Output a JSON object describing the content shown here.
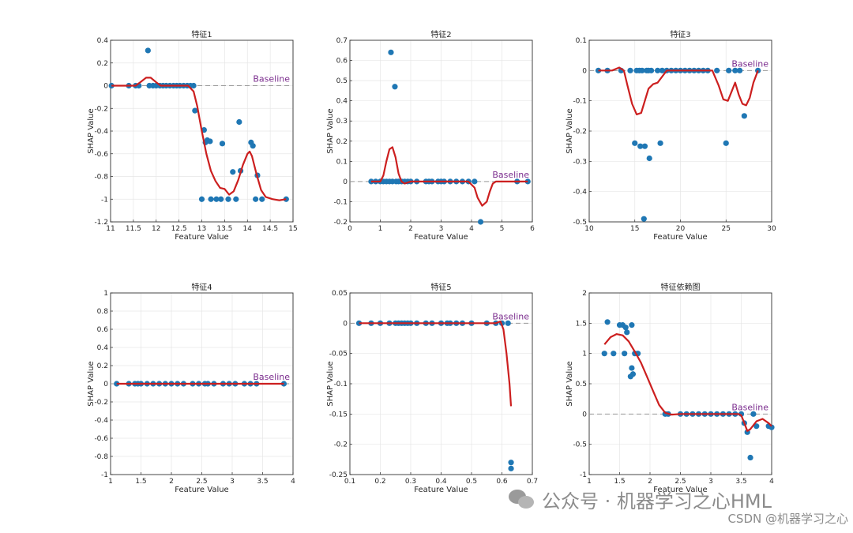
{
  "watermark": {
    "text": "公众号 · 机器学习之心HML",
    "icon": "wechat-icon",
    "csdn": "CSDN @机器学习之心"
  },
  "colors": {
    "points": "#1f77b4",
    "curve": "#cc1f1f",
    "baseline_text": "#7b2d8e",
    "baseline_line": "#999999"
  },
  "chart_data": [
    {
      "type": "scatter",
      "title": "特征1",
      "xlabel": "Feature Value",
      "ylabel": "SHAP Value",
      "xlim": [
        11,
        15
      ],
      "ylim": [
        -1.2,
        0.4
      ],
      "xticks": [
        "11",
        "11.5",
        "12",
        "12.5",
        "13",
        "13.5",
        "14",
        "14.5",
        "15"
      ],
      "yticks": [
        "-1.2",
        "-1",
        "-0.8",
        "-0.6",
        "-0.4",
        "-0.2",
        "0",
        "0.2",
        "0.4"
      ],
      "baseline_label": "Baseline",
      "points": [
        [
          11.02,
          0
        ],
        [
          11.4,
          0
        ],
        [
          11.55,
          0
        ],
        [
          11.62,
          0
        ],
        [
          11.82,
          0.31
        ],
        [
          11.85,
          0
        ],
        [
          11.93,
          0
        ],
        [
          12.0,
          0
        ],
        [
          12.08,
          0
        ],
        [
          12.15,
          0
        ],
        [
          12.22,
          0
        ],
        [
          12.3,
          0
        ],
        [
          12.38,
          0
        ],
        [
          12.45,
          0
        ],
        [
          12.52,
          0
        ],
        [
          12.6,
          0
        ],
        [
          12.68,
          0
        ],
        [
          12.75,
          0
        ],
        [
          12.82,
          0
        ],
        [
          12.85,
          -0.22
        ],
        [
          13.0,
          -1
        ],
        [
          13.05,
          -0.39
        ],
        [
          13.08,
          -0.5
        ],
        [
          13.12,
          -0.48
        ],
        [
          13.18,
          -0.49
        ],
        [
          13.2,
          -1
        ],
        [
          13.32,
          -1
        ],
        [
          13.42,
          -1
        ],
        [
          13.45,
          -0.51
        ],
        [
          13.58,
          -1
        ],
        [
          13.68,
          -0.76
        ],
        [
          13.75,
          -1
        ],
        [
          13.82,
          -0.32
        ],
        [
          13.85,
          -0.75
        ],
        [
          14.08,
          -0.5
        ],
        [
          14.12,
          -0.53
        ],
        [
          14.18,
          -1
        ],
        [
          14.22,
          -0.79
        ],
        [
          14.32,
          -1
        ],
        [
          14.85,
          -1
        ]
      ],
      "curve": [
        [
          11.02,
          0
        ],
        [
          11.3,
          0
        ],
        [
          11.55,
          0
        ],
        [
          11.65,
          0.03
        ],
        [
          11.78,
          0.07
        ],
        [
          11.88,
          0.07
        ],
        [
          12.0,
          0.03
        ],
        [
          12.1,
          0
        ],
        [
          12.5,
          0
        ],
        [
          12.7,
          0
        ],
        [
          12.82,
          -0.05
        ],
        [
          12.9,
          -0.18
        ],
        [
          13.0,
          -0.4
        ],
        [
          13.1,
          -0.6
        ],
        [
          13.2,
          -0.75
        ],
        [
          13.3,
          -0.84
        ],
        [
          13.4,
          -0.9
        ],
        [
          13.5,
          -0.91
        ],
        [
          13.6,
          -0.96
        ],
        [
          13.7,
          -0.93
        ],
        [
          13.8,
          -0.83
        ],
        [
          13.9,
          -0.7
        ],
        [
          14.0,
          -0.6
        ],
        [
          14.05,
          -0.58
        ],
        [
          14.1,
          -0.62
        ],
        [
          14.2,
          -0.78
        ],
        [
          14.3,
          -0.92
        ],
        [
          14.4,
          -0.98
        ],
        [
          14.55,
          -1
        ],
        [
          14.7,
          -1.01
        ],
        [
          14.85,
          -1
        ]
      ]
    },
    {
      "type": "scatter",
      "title": "特征2",
      "xlabel": "Feature Value",
      "ylabel": "SHAP Value",
      "xlim": [
        0,
        6
      ],
      "ylim": [
        -0.2,
        0.7
      ],
      "xticks": [
        "0",
        "1",
        "2",
        "3",
        "4",
        "5",
        "6"
      ],
      "yticks": [
        "-0.2",
        "-0.1",
        "0",
        "0.1",
        "0.2",
        "0.3",
        "0.4",
        "0.5",
        "0.6",
        "0.7"
      ],
      "baseline_label": "Baseline",
      "points": [
        [
          0.7,
          0
        ],
        [
          0.85,
          0
        ],
        [
          1.0,
          0
        ],
        [
          1.1,
          0
        ],
        [
          1.2,
          0
        ],
        [
          1.3,
          0
        ],
        [
          1.35,
          0.64
        ],
        [
          1.4,
          0
        ],
        [
          1.48,
          0.47
        ],
        [
          1.52,
          0
        ],
        [
          1.6,
          0
        ],
        [
          1.7,
          0
        ],
        [
          1.8,
          0
        ],
        [
          1.9,
          0
        ],
        [
          2.0,
          0
        ],
        [
          2.2,
          0
        ],
        [
          2.5,
          0
        ],
        [
          2.6,
          0
        ],
        [
          2.7,
          0
        ],
        [
          2.9,
          0
        ],
        [
          3.0,
          0
        ],
        [
          3.1,
          0
        ],
        [
          3.3,
          0
        ],
        [
          3.5,
          0
        ],
        [
          3.7,
          0
        ],
        [
          3.9,
          0
        ],
        [
          4.1,
          0
        ],
        [
          4.3,
          -0.2
        ],
        [
          5.5,
          0
        ],
        [
          5.85,
          0
        ]
      ],
      "curve": [
        [
          0.7,
          0
        ],
        [
          1.0,
          0
        ],
        [
          1.1,
          0.03
        ],
        [
          1.2,
          0.1
        ],
        [
          1.3,
          0.16
        ],
        [
          1.4,
          0.17
        ],
        [
          1.5,
          0.12
        ],
        [
          1.6,
          0.04
        ],
        [
          1.7,
          0
        ],
        [
          1.8,
          -0.01
        ],
        [
          2.0,
          0
        ],
        [
          3.0,
          0
        ],
        [
          3.9,
          0
        ],
        [
          4.1,
          -0.03
        ],
        [
          4.2,
          -0.08
        ],
        [
          4.35,
          -0.12
        ],
        [
          4.5,
          -0.1
        ],
        [
          4.6,
          -0.05
        ],
        [
          4.7,
          -0.01
        ],
        [
          4.8,
          0
        ],
        [
          5.85,
          0
        ]
      ]
    },
    {
      "type": "scatter",
      "title": "特征3",
      "xlabel": "Feature Value",
      "ylabel": "SHAP Value",
      "xlim": [
        10,
        30
      ],
      "ylim": [
        -0.5,
        0.1
      ],
      "xticks": [
        "10",
        "15",
        "20",
        "25",
        "30"
      ],
      "yticks": [
        "-0.5",
        "-0.4",
        "-0.3",
        "-0.2",
        "-0.1",
        "0",
        "0.1"
      ],
      "baseline_label": "Baseline",
      "points": [
        [
          11.0,
          0
        ],
        [
          12.0,
          0
        ],
        [
          13.5,
          0
        ],
        [
          14.5,
          0
        ],
        [
          15.0,
          -0.24
        ],
        [
          15.2,
          0
        ],
        [
          15.5,
          0
        ],
        [
          15.6,
          -0.25
        ],
        [
          15.8,
          0
        ],
        [
          16.0,
          -0.49
        ],
        [
          16.1,
          -0.25
        ],
        [
          16.3,
          0
        ],
        [
          16.5,
          0
        ],
        [
          16.6,
          -0.29
        ],
        [
          16.8,
          0
        ],
        [
          17.5,
          0
        ],
        [
          17.8,
          -0.24
        ],
        [
          18.0,
          0
        ],
        [
          18.5,
          0
        ],
        [
          19.0,
          0
        ],
        [
          19.5,
          0
        ],
        [
          20.0,
          0
        ],
        [
          20.5,
          0
        ],
        [
          21.0,
          0
        ],
        [
          21.5,
          0
        ],
        [
          22.0,
          0
        ],
        [
          22.5,
          0
        ],
        [
          23.0,
          0
        ],
        [
          24.0,
          0
        ],
        [
          25.0,
          -0.24
        ],
        [
          25.3,
          0
        ],
        [
          26.0,
          0
        ],
        [
          26.5,
          0
        ],
        [
          27.0,
          -0.15
        ],
        [
          28.5,
          0
        ]
      ],
      "curve": [
        [
          11.0,
          0
        ],
        [
          12.5,
          0
        ],
        [
          13.3,
          0.01
        ],
        [
          13.8,
          0
        ],
        [
          14.2,
          -0.05
        ],
        [
          14.7,
          -0.11
        ],
        [
          15.2,
          -0.145
        ],
        [
          15.7,
          -0.14
        ],
        [
          16.0,
          -0.11
        ],
        [
          16.5,
          -0.06
        ],
        [
          17.0,
          -0.045
        ],
        [
          17.5,
          -0.04
        ],
        [
          18.0,
          -0.02
        ],
        [
          18.5,
          0
        ],
        [
          19.0,
          0
        ],
        [
          22.5,
          0
        ],
        [
          23.5,
          0
        ],
        [
          24.2,
          -0.05
        ],
        [
          24.7,
          -0.095
        ],
        [
          25.2,
          -0.1
        ],
        [
          25.6,
          -0.07
        ],
        [
          26.0,
          -0.04
        ],
        [
          26.4,
          -0.08
        ],
        [
          26.8,
          -0.11
        ],
        [
          27.2,
          -0.115
        ],
        [
          27.6,
          -0.09
        ],
        [
          28.0,
          -0.04
        ],
        [
          28.5,
          0
        ]
      ]
    },
    {
      "type": "scatter",
      "title": "特征4",
      "xlabel": "Feature Value",
      "ylabel": "SHAP Value",
      "xlim": [
        1,
        4
      ],
      "ylim": [
        -1,
        1
      ],
      "xticks": [
        "1",
        "1.5",
        "2",
        "2.5",
        "3",
        "3.5",
        "4"
      ],
      "yticks": [
        "-1",
        "-0.8",
        "-0.6",
        "-0.4",
        "-0.2",
        "0",
        "0.2",
        "0.4",
        "0.6",
        "0.8",
        "1"
      ],
      "baseline_label": "Baseline",
      "points": [
        [
          1.1,
          0
        ],
        [
          1.3,
          0
        ],
        [
          1.4,
          0
        ],
        [
          1.45,
          0
        ],
        [
          1.5,
          0
        ],
        [
          1.6,
          0
        ],
        [
          1.7,
          0
        ],
        [
          1.8,
          0
        ],
        [
          1.9,
          0
        ],
        [
          2.0,
          0
        ],
        [
          2.1,
          0
        ],
        [
          2.2,
          0
        ],
        [
          2.35,
          0
        ],
        [
          2.45,
          0
        ],
        [
          2.55,
          0
        ],
        [
          2.6,
          0
        ],
        [
          2.7,
          0
        ],
        [
          2.85,
          0
        ],
        [
          2.95,
          0
        ],
        [
          3.05,
          0
        ],
        [
          3.2,
          0
        ],
        [
          3.3,
          0
        ],
        [
          3.4,
          0
        ],
        [
          3.85,
          0
        ]
      ],
      "curve": [
        [
          1.1,
          0
        ],
        [
          3.85,
          0
        ]
      ]
    },
    {
      "type": "scatter",
      "title": "特征5",
      "xlabel": "Feature Value",
      "ylabel": "SHAP Value",
      "xlim": [
        0.1,
        0.7
      ],
      "ylim": [
        -0.25,
        0.05
      ],
      "xticks": [
        "0.1",
        "0.2",
        "0.3",
        "0.4",
        "0.5",
        "0.6",
        "0.7"
      ],
      "yticks": [
        "-0.25",
        "-0.2",
        "-0.15",
        "-0.1",
        "-0.05",
        "0",
        "0.05"
      ],
      "baseline_label": "Baseline",
      "points": [
        [
          0.13,
          0
        ],
        [
          0.17,
          0
        ],
        [
          0.2,
          0
        ],
        [
          0.23,
          0
        ],
        [
          0.25,
          0
        ],
        [
          0.26,
          0
        ],
        [
          0.27,
          0
        ],
        [
          0.28,
          0
        ],
        [
          0.29,
          0
        ],
        [
          0.3,
          0
        ],
        [
          0.32,
          0
        ],
        [
          0.35,
          0
        ],
        [
          0.37,
          0
        ],
        [
          0.4,
          0
        ],
        [
          0.42,
          0
        ],
        [
          0.43,
          0
        ],
        [
          0.45,
          0
        ],
        [
          0.47,
          0
        ],
        [
          0.5,
          0
        ],
        [
          0.55,
          0
        ],
        [
          0.58,
          0
        ],
        [
          0.6,
          0
        ],
        [
          0.62,
          0
        ],
        [
          0.63,
          -0.23
        ],
        [
          0.63,
          -0.24
        ]
      ],
      "curve": [
        [
          0.13,
          0
        ],
        [
          0.55,
          0
        ],
        [
          0.58,
          0
        ],
        [
          0.595,
          0.003
        ],
        [
          0.605,
          -0.01
        ],
        [
          0.615,
          -0.05
        ],
        [
          0.625,
          -0.1
        ],
        [
          0.63,
          -0.137
        ]
      ]
    },
    {
      "type": "scatter",
      "title": "特征依赖图",
      "xlabel": "Feature Value",
      "ylabel": "SHAP Value",
      "xlim": [
        1,
        4
      ],
      "ylim": [
        -1,
        2
      ],
      "xticks": [
        "1",
        "1.5",
        "2",
        "2.5",
        "3",
        "3.5",
        "4"
      ],
      "yticks": [
        "-1",
        "-0.5",
        "0",
        "0.5",
        "1",
        "1.5",
        "2"
      ],
      "baseline_label": "Baseline",
      "points": [
        [
          1.25,
          1.0
        ],
        [
          1.3,
          1.52
        ],
        [
          1.4,
          1.0
        ],
        [
          1.5,
          1.47
        ],
        [
          1.55,
          1.47
        ],
        [
          1.58,
          1.0
        ],
        [
          1.6,
          1.43
        ],
        [
          1.62,
          1.35
        ],
        [
          1.68,
          0.62
        ],
        [
          1.7,
          1.47
        ],
        [
          1.7,
          0.76
        ],
        [
          1.72,
          0.66
        ],
        [
          1.75,
          1.0
        ],
        [
          1.8,
          1.0
        ],
        [
          2.25,
          0
        ],
        [
          2.3,
          0
        ],
        [
          2.5,
          0
        ],
        [
          2.6,
          0
        ],
        [
          2.7,
          0
        ],
        [
          2.8,
          0
        ],
        [
          2.9,
          0
        ],
        [
          3.0,
          0
        ],
        [
          3.1,
          0
        ],
        [
          3.2,
          0
        ],
        [
          3.3,
          0
        ],
        [
          3.4,
          0
        ],
        [
          3.5,
          0
        ],
        [
          3.55,
          -0.15
        ],
        [
          3.6,
          -0.3
        ],
        [
          3.65,
          -0.72
        ],
        [
          3.7,
          0
        ],
        [
          3.75,
          -0.2
        ],
        [
          3.95,
          -0.2
        ],
        [
          4.0,
          -0.22
        ]
      ],
      "curve": [
        [
          1.25,
          1.15
        ],
        [
          1.35,
          1.27
        ],
        [
          1.45,
          1.32
        ],
        [
          1.55,
          1.3
        ],
        [
          1.65,
          1.2
        ],
        [
          1.75,
          1.03
        ],
        [
          1.85,
          0.85
        ],
        [
          1.95,
          0.62
        ],
        [
          2.05,
          0.38
        ],
        [
          2.15,
          0.15
        ],
        [
          2.25,
          0.02
        ],
        [
          2.35,
          -0.01
        ],
        [
          2.5,
          0
        ],
        [
          3.45,
          0
        ],
        [
          3.5,
          -0.02
        ],
        [
          3.55,
          -0.15
        ],
        [
          3.6,
          -0.28
        ],
        [
          3.65,
          -0.25
        ],
        [
          3.75,
          -0.12
        ],
        [
          3.85,
          -0.08
        ],
        [
          3.95,
          -0.15
        ],
        [
          4.0,
          -0.2
        ]
      ]
    }
  ]
}
